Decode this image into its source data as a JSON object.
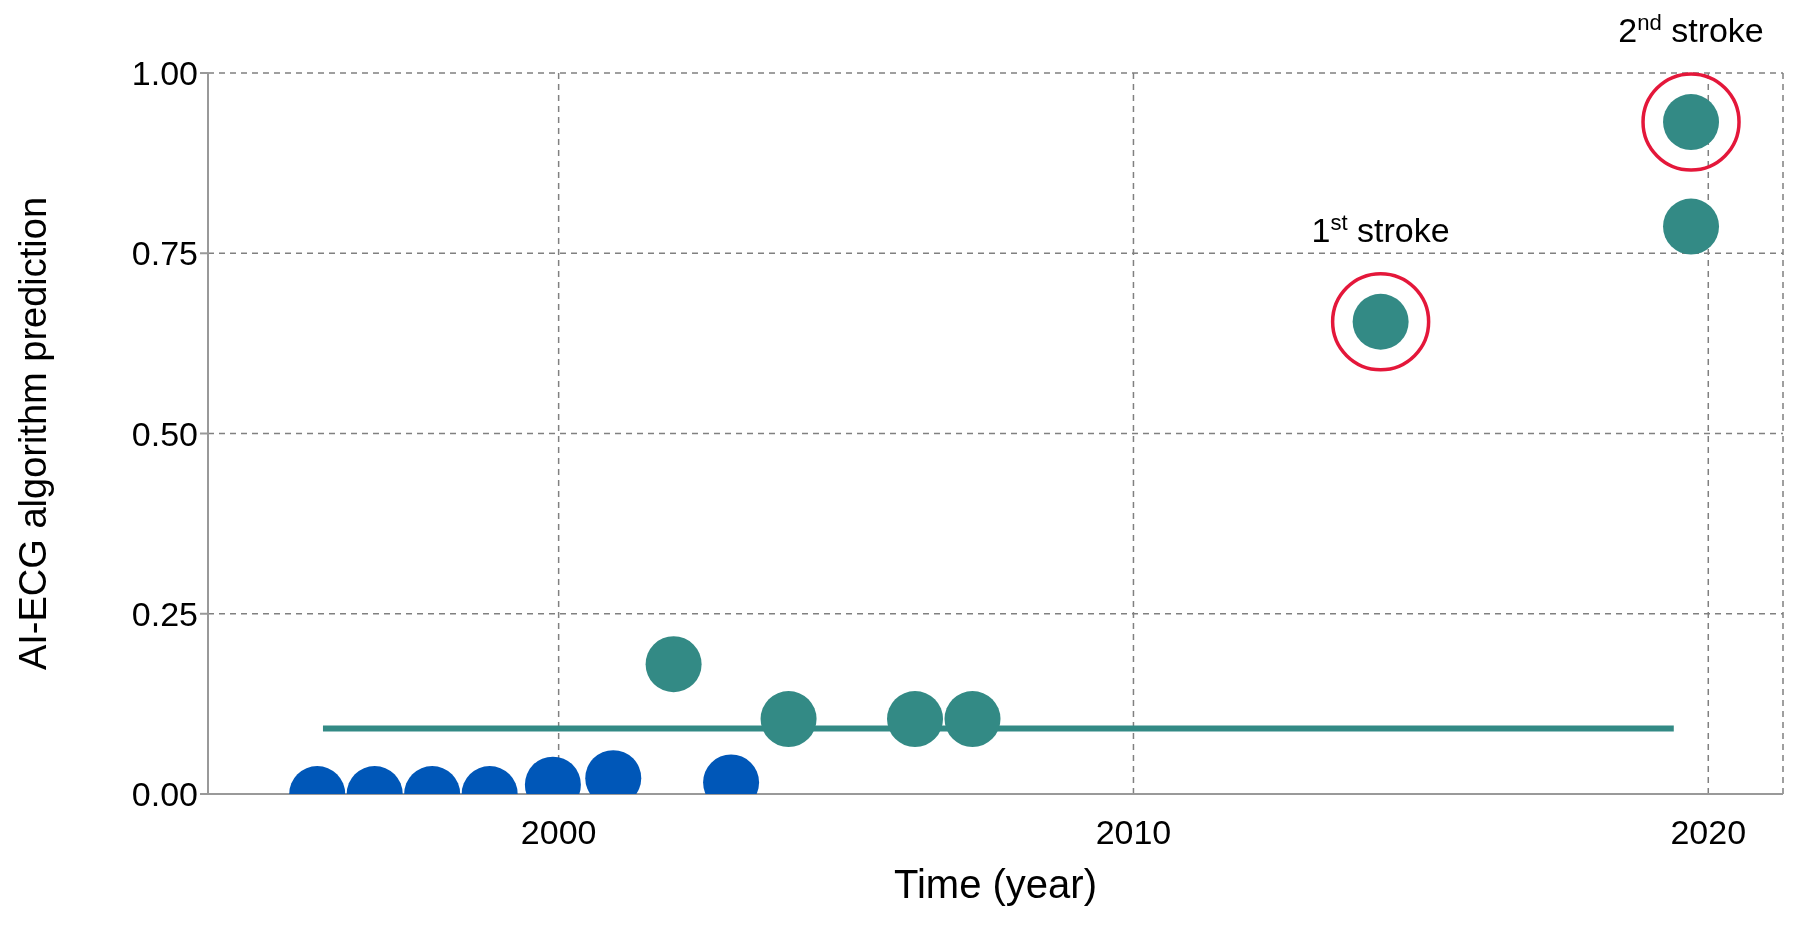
{
  "chart_data": {
    "type": "scatter",
    "xlabel": "Time (year)",
    "ylabel": "AI-ECG algorithm prediction",
    "xlim": [
      1993.9,
      2021.3
    ],
    "xticks": [
      2000,
      2010,
      2020
    ],
    "ylim": [
      0,
      1
    ],
    "yticks": [
      {
        "value": 0,
        "label": "0.00"
      },
      {
        "value": 0.25,
        "label": "0.25"
      },
      {
        "value": 0.5,
        "label": "0.50"
      },
      {
        "value": 0.75,
        "label": "0.75"
      },
      {
        "value": 1,
        "label": "1.00"
      }
    ],
    "grid": true,
    "marker": "circle",
    "series": [
      {
        "color": "#0057b8",
        "x": [
          1995.8,
          1996.8,
          1997.8,
          1998.8,
          1999.9,
          2000.95,
          2003.0
        ],
        "values": [
          0.0,
          0.0,
          0.0,
          0.0,
          0.013,
          0.022,
          0.016
        ]
      },
      {
        "color": "#338a85",
        "x": [
          2002.0,
          2004.0,
          2006.2,
          2007.2,
          2014.3,
          2019.7,
          2019.7
        ],
        "values": [
          0.18,
          0.104,
          0.104,
          0.104,
          0.655,
          0.932,
          0.787
        ]
      },
      {
        "type": "line",
        "color": "#338a85",
        "marker": "none",
        "line_style": "solid",
        "x": [
          1995.9,
          2019.4
        ],
        "values": [
          0.091,
          0.091
        ]
      }
    ],
    "annotations": [
      {
        "text": "1$^{st}$ stroke",
        "x": 2014.3,
        "y": 0.655
      },
      {
        "text": "2$^{nd}$ stroke",
        "x": 2019.7,
        "y": 0.932
      }
    ]
  }
}
